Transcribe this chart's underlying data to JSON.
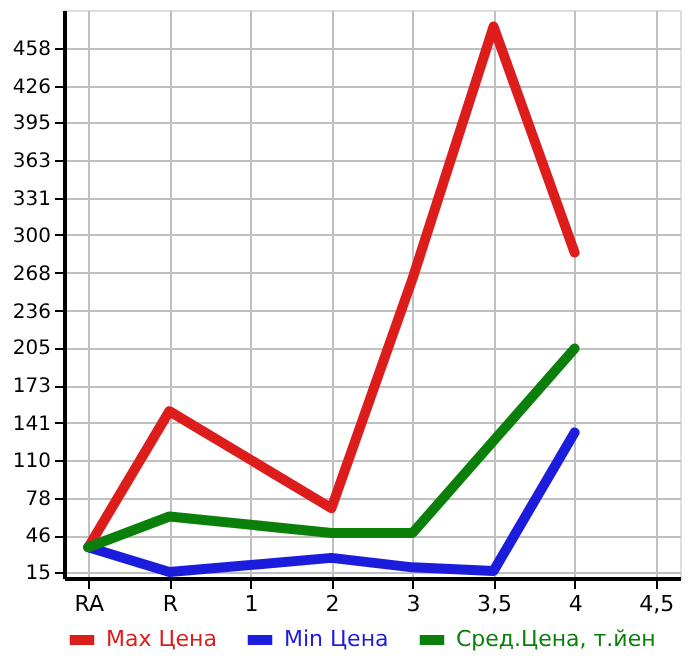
{
  "chart_data": {
    "type": "line",
    "categories": [
      "RA",
      "R",
      "1",
      "2",
      "3",
      "3,5",
      "4",
      "4,5"
    ],
    "series": [
      {
        "name": "Max Цена",
        "color": "#dd1c1c",
        "values": [
          36,
          151,
          null,
          69,
          263,
          476,
          285,
          null
        ]
      },
      {
        "name": "Min Цена",
        "color": "#1c1cdd",
        "values": [
          36,
          15,
          null,
          27,
          19,
          16,
          133,
          null
        ]
      },
      {
        "name": "Сред.Цена, т.йен",
        "color": "#0a7f0a",
        "values": [
          36,
          62,
          null,
          48,
          48,
          126,
          204,
          null
        ]
      }
    ],
    "ylim": [
      10,
      490
    ],
    "yticks": [
      15,
      46,
      78,
      110,
      141,
      173,
      205,
      236,
      268,
      300,
      331,
      363,
      395,
      426,
      458
    ],
    "grid": true,
    "legend": "bottom",
    "marker": "none",
    "line_style": "solid"
  }
}
